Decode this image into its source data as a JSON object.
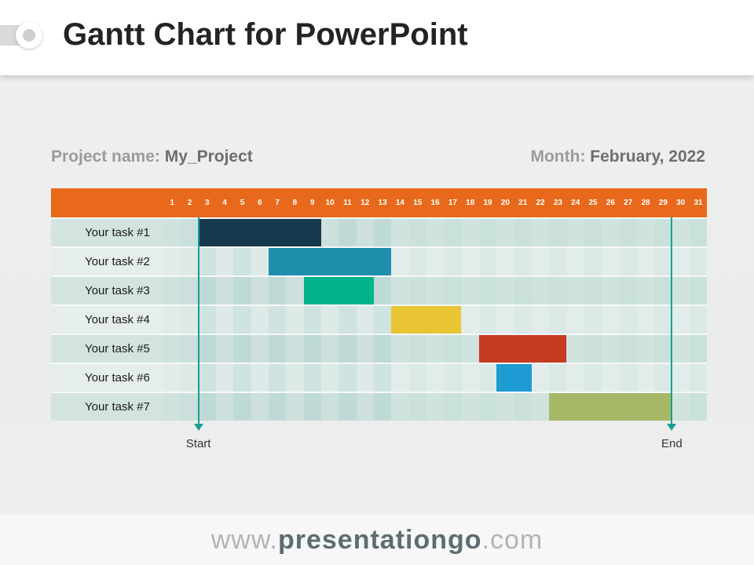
{
  "header": {
    "title": "Gantt Chart for PowerPoint"
  },
  "meta": {
    "project_label": "Project name:",
    "project_value": "My_Project",
    "month_label": "Month:",
    "month_value": "February, 2022"
  },
  "chart_data": {
    "type": "gantt",
    "title": "Gantt Chart for PowerPoint",
    "days": [
      1,
      2,
      3,
      4,
      5,
      6,
      7,
      8,
      9,
      10,
      11,
      12,
      13,
      14,
      15,
      16,
      17,
      18,
      19,
      20,
      21,
      22,
      23,
      24,
      25,
      26,
      27,
      28,
      29,
      30,
      31
    ],
    "tasks": [
      {
        "label": "Your task #1",
        "start": 3,
        "end": 9,
        "color": "#17394e"
      },
      {
        "label": "Your task #2",
        "start": 7,
        "end": 13,
        "color": "#1f8fae"
      },
      {
        "label": "Your task #3",
        "start": 9,
        "end": 12,
        "color": "#03b38b"
      },
      {
        "label": "Your task #4",
        "start": 14,
        "end": 17,
        "color": "#e9c534"
      },
      {
        "label": "Your task #5",
        "start": 19,
        "end": 23,
        "color": "#c53a21"
      },
      {
        "label": "Your task #6",
        "start": 20,
        "end": 21,
        "color": "#1e9bd2"
      },
      {
        "label": "Your task #7",
        "start": 23,
        "end": 29,
        "color": "#a6b868"
      }
    ],
    "markers": [
      {
        "label": "Start",
        "at_day": 3
      },
      {
        "label": "End",
        "at_day": 30
      }
    ],
    "colors": {
      "header_bg": "#e8691b",
      "arrow": "#18a090",
      "row_odd": "#d3e4e0",
      "row_even": "#e5eeec"
    }
  },
  "footer": {
    "www": "www.",
    "name": "presentationgo",
    "com": ".com"
  }
}
